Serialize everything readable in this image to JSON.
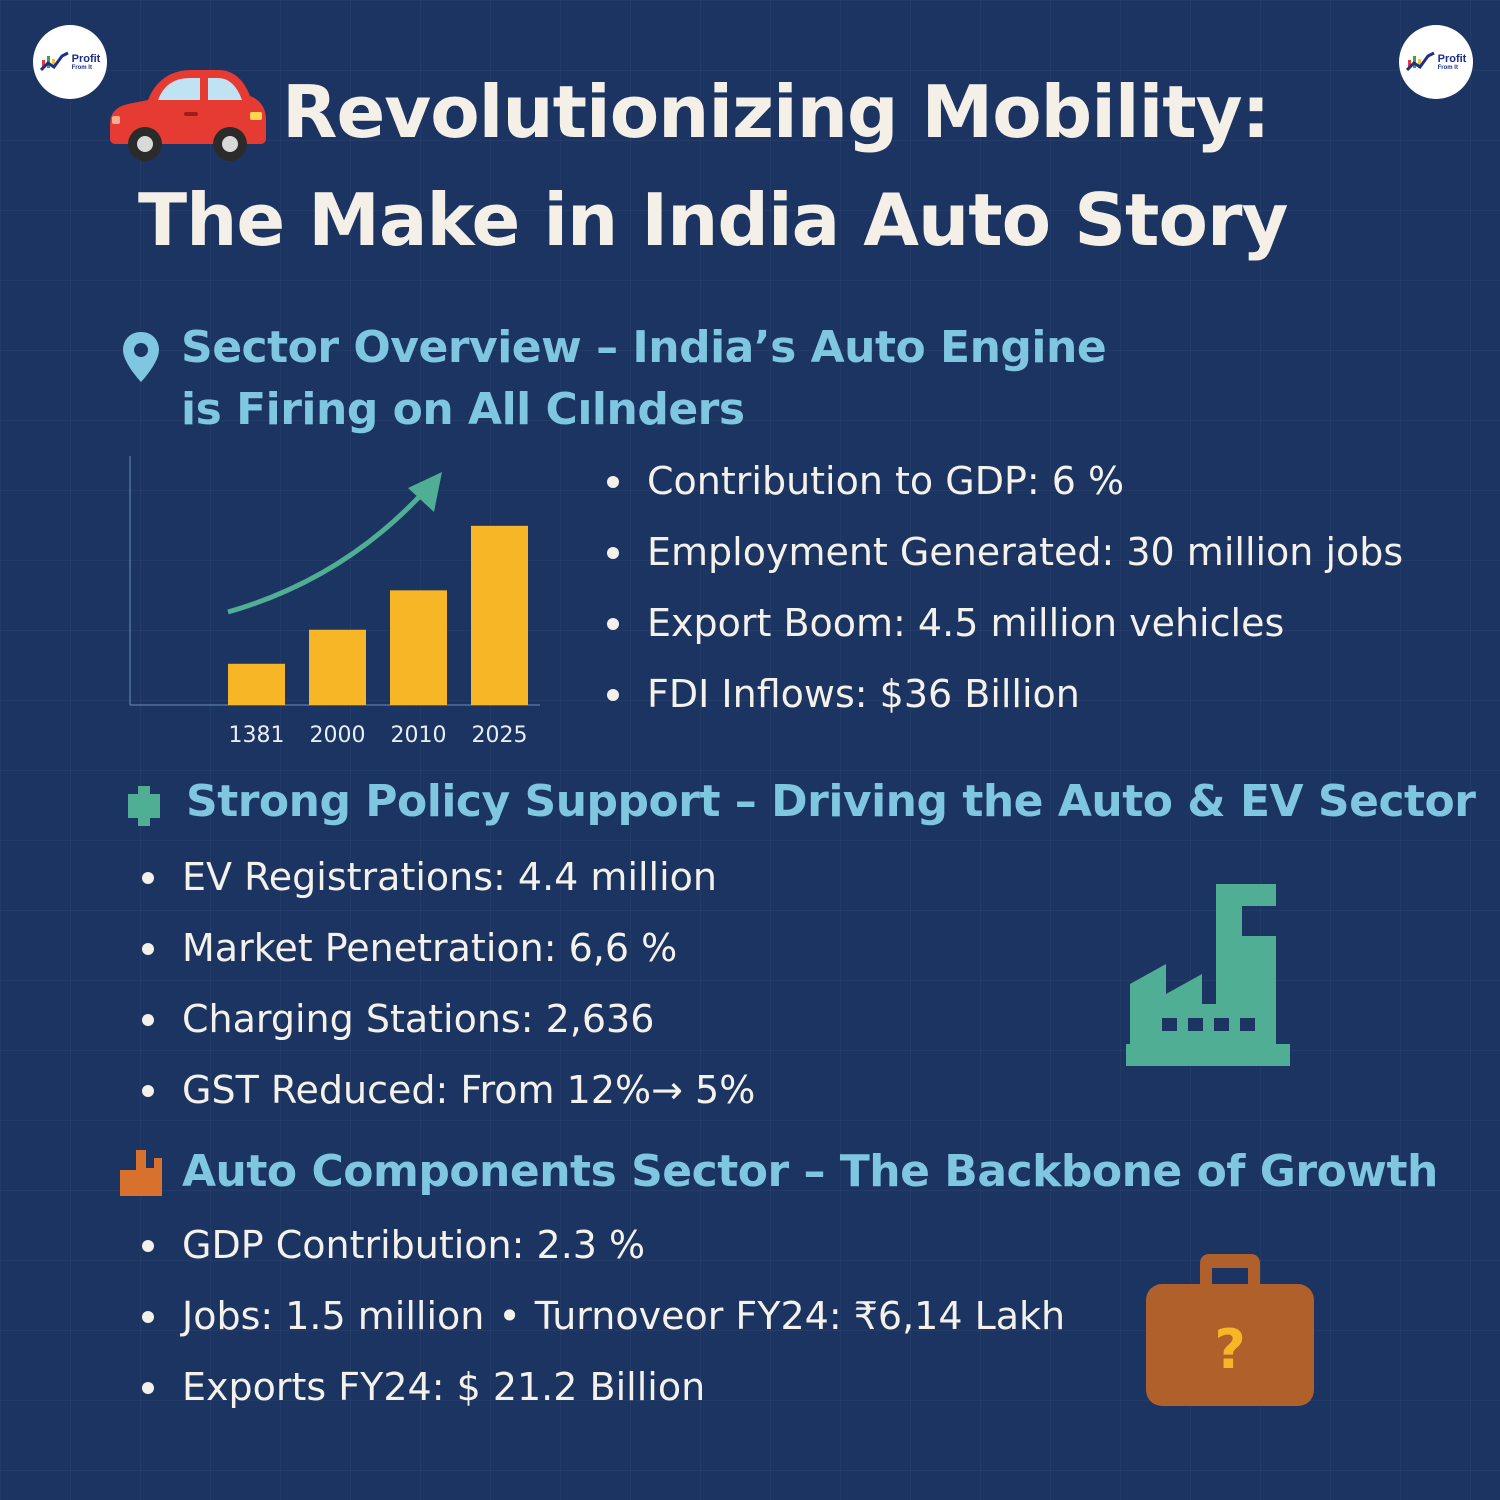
{
  "logo": {
    "brand_line1": "Profit",
    "brand_line2": "From It"
  },
  "title": {
    "line1": "Revolutionizing Mobility:",
    "line2": "The Make in India Auto Story",
    "icon": "car-icon"
  },
  "sector_overview": {
    "icon": "location-pin-icon",
    "heading_line1": "Sector Overview – India’s Auto Engine",
    "heading_line2": "is Firing on All Cılnders",
    "bullets": [
      "Contribution to GDP: 6 %",
      "Employment Generated: 30 million jobs",
      "Export Boom: 4.5 million vehicles",
      "FDI Inflows: $36 Billion"
    ]
  },
  "chart_data": {
    "type": "bar",
    "categories": [
      "1381",
      "2000",
      "2010",
      "2025"
    ],
    "values": [
      2.3,
      4.2,
      6.4,
      10
    ],
    "ylim": [
      0,
      12
    ],
    "bar_color": "#f6b626",
    "trend_arrow_color": "#4fae93",
    "grid": false
  },
  "policy": {
    "icon": "policy-block-icon",
    "heading": "Strong Policy Support – Driving the Auto & EV Sector",
    "bullets": [
      "EV Registrations: 4.4 million",
      "Market Penetration: 6,6 %",
      "Charging Stations: 2,636",
      "GST Reduced: From 12%→ 5%"
    ],
    "illustration": "factory-icon"
  },
  "components": {
    "icon": "component-block-icon",
    "heading": "Auto Components Sector – The Backbone of Growth",
    "bullet1": "GDP Contribution: 2.3 %",
    "bullet2a": "Jobs: 1.5 million",
    "bullet2_sep": "•",
    "bullet2b": "Turnoveor FY24: ₹6,14 Lakh",
    "bullet3": "Exports FY24: $ 21.2 Billion",
    "illustration": "briefcase-icon",
    "illustration_mark": "?"
  },
  "colors": {
    "background": "#1c3461",
    "heading": "#7fc6e0",
    "title": "#f4efe7",
    "accent_green": "#4fae93",
    "accent_orange": "#d8712d"
  }
}
